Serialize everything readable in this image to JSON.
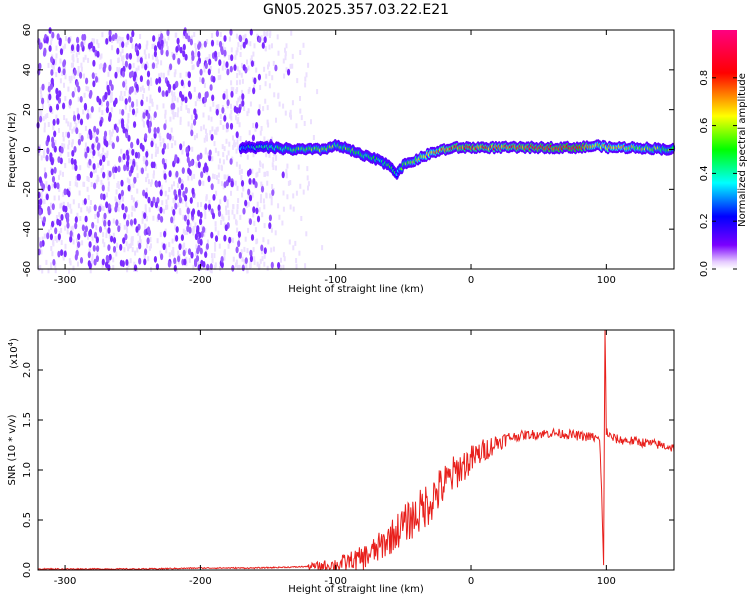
{
  "title": "GN05.2025.357.03.22.E21",
  "chart_data": [
    {
      "type": "heatmap",
      "xlabel": "Height of straight line (km)",
      "ylabel": "Frequency (Hz)",
      "xlim": [
        -320,
        150
      ],
      "ylim": [
        -60,
        60
      ],
      "x_ticks": [
        -300,
        -200,
        -100,
        0,
        100
      ],
      "x_tick_labels": [
        "-300",
        "-200",
        "-100",
        "0",
        "100"
      ],
      "y_ticks": [
        -60,
        -40,
        -20,
        0,
        20,
        40,
        60
      ],
      "y_tick_labels": [
        "-60",
        "-40",
        "-20",
        "0",
        "20",
        "40",
        "60"
      ],
      "colorbar": {
        "label": "Normalized spectral amplitude",
        "range": [
          0,
          1
        ],
        "ticks": [
          0.0,
          0.2,
          0.4,
          0.6,
          0.8
        ],
        "tick_labels": [
          "0.0",
          "0.2",
          "0.4",
          "0.6",
          "0.8"
        ],
        "colors": [
          "#ffffff",
          "#7b00ff",
          "#0000ff",
          "#00ffff",
          "#00ff00",
          "#ffff00",
          "#ff0000",
          "#ff0080"
        ]
      },
      "noise_region": {
        "x_from": -320,
        "x_to": -120,
        "amplitude": 0.1
      },
      "signal_trace": {
        "x": [
          -170,
          -150,
          -130,
          -110,
          -100,
          -90,
          -80,
          -70,
          -60,
          -55,
          -50,
          -40,
          -30,
          -20,
          -10,
          0,
          20,
          40,
          60,
          80,
          95,
          100,
          120,
          150
        ],
        "frequency": [
          1,
          1,
          0,
          0,
          2,
          0,
          -3,
          -5,
          -8,
          -12,
          -8,
          -5,
          -2,
          0,
          1,
          1,
          1,
          1,
          1,
          1,
          2,
          1,
          1,
          0
        ],
        "amplitude": [
          0.35,
          0.45,
          0.5,
          0.55,
          0.5,
          0.5,
          0.5,
          0.45,
          0.45,
          0.4,
          0.5,
          0.6,
          0.65,
          0.75,
          0.8,
          0.8,
          0.75,
          0.8,
          0.85,
          0.9,
          0.6,
          0.7,
          0.6,
          0.5
        ]
      }
    },
    {
      "type": "line",
      "xlabel": "Height of straight line (km)",
      "ylabel": "SNR (10 * v/v)",
      "multiplier": "(x10",
      "multiplier_exp": "4",
      "multiplier_close": ")",
      "color": "#e8201c",
      "xlim": [
        -320,
        150
      ],
      "ylim": [
        0,
        2.4
      ],
      "x_ticks": [
        -300,
        -200,
        -100,
        0,
        100
      ],
      "x_tick_labels": [
        "-300",
        "-200",
        "-100",
        "0",
        "100"
      ],
      "y_ticks": [
        0,
        0.5,
        1.0,
        1.5,
        2.0
      ],
      "y_tick_labels": [
        "0.0",
        "0.5",
        "1.0",
        "1.5",
        "2.0"
      ],
      "series": [
        {
          "x": [
            -320,
            -280,
            -240,
            -200,
            -160,
            -130,
            -110,
            -100,
            -90,
            -80,
            -70,
            -60,
            -50,
            -40,
            -30,
            -20,
            -10,
            0,
            10,
            20,
            30,
            40,
            50,
            60,
            70,
            80,
            90,
            95,
            97,
            98,
            99,
            100,
            102,
            105,
            110,
            120,
            130,
            140,
            150
          ],
          "y": [
            0.01,
            0.01,
            0.01,
            0.02,
            0.02,
            0.03,
            0.04,
            0.05,
            0.08,
            0.12,
            0.2,
            0.32,
            0.45,
            0.55,
            0.7,
            0.85,
            1.0,
            1.1,
            1.2,
            1.28,
            1.33,
            1.35,
            1.36,
            1.37,
            1.36,
            1.34,
            1.33,
            1.3,
            0.6,
            0.05,
            2.4,
            1.4,
            1.34,
            1.32,
            1.3,
            1.29,
            1.27,
            1.25,
            1.22
          ]
        }
      ]
    }
  ]
}
